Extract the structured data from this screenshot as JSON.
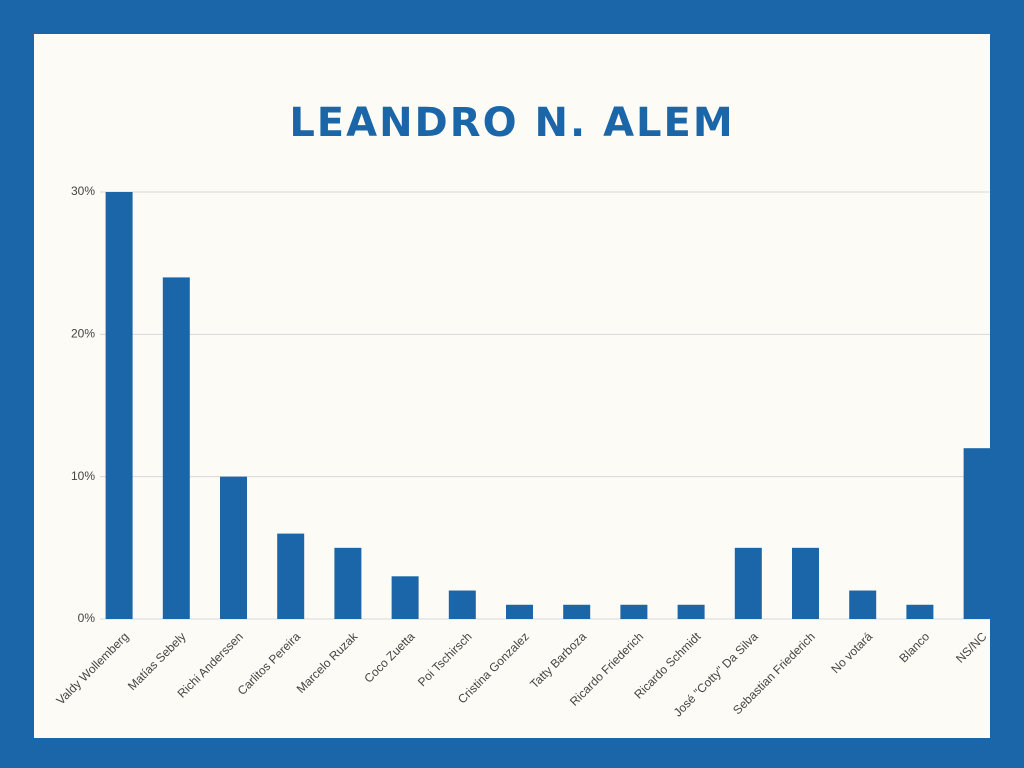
{
  "chart_data": {
    "type": "bar",
    "title": "LEANDRO N. ALEM",
    "categories": [
      "Valdy Wollemberg",
      "Matías Sebely",
      "Richi Anderssen",
      "Carlitos Pereira",
      "Marcelo Ruzak",
      "Coco Zuetta",
      "Poi Tschirsch",
      "Cristina Gonzalez",
      "Tatty Barboza",
      "Ricardo Friederich",
      "Ricardo Schmidt",
      "José \"Cotty\" Da Silva",
      "Sebastian  Friederich",
      "No votará",
      "Blanco",
      "NS/NC"
    ],
    "values": [
      30,
      24,
      10,
      6,
      5,
      3,
      2,
      1,
      1,
      1,
      1,
      5,
      5,
      2,
      1,
      12
    ],
    "color": "#1a66a8",
    "ylim": [
      0,
      30
    ],
    "yticks": [
      {
        "value": 0,
        "label": "0%"
      },
      {
        "value": 10,
        "label": "10%"
      },
      {
        "value": 20,
        "label": "20%"
      },
      {
        "value": 30,
        "label": "30%"
      }
    ],
    "grid": true
  }
}
